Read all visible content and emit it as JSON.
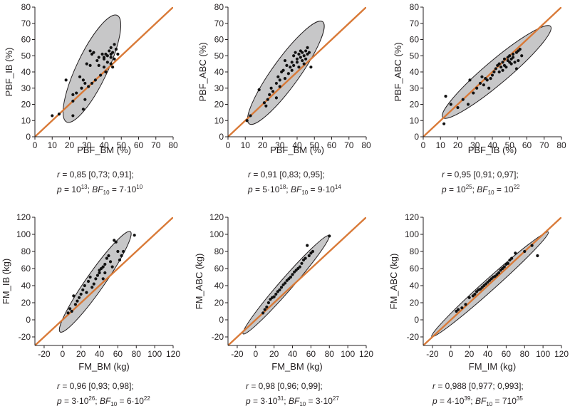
{
  "chart_data": [
    {
      "type": "scatter",
      "xlabel": "PBF_BM (%)",
      "ylabel": "PBF_IB (%)",
      "xlim": [
        0,
        80
      ],
      "ylim": [
        0,
        80
      ],
      "xticks": [
        0,
        10,
        20,
        30,
        40,
        50,
        60,
        70,
        80
      ],
      "yticks": [
        0,
        10,
        20,
        30,
        40,
        50,
        60,
        70,
        80
      ],
      "identity_line": true,
      "ellipse": {
        "center": [
          33,
          42
        ],
        "semi_major": 36,
        "semi_minor": 9,
        "angle_deg": 66
      },
      "points": [
        [
          10,
          13
        ],
        [
          14,
          14
        ],
        [
          18,
          35
        ],
        [
          22,
          13
        ],
        [
          22,
          26
        ],
        [
          22,
          22
        ],
        [
          24,
          27
        ],
        [
          26,
          37
        ],
        [
          27,
          30
        ],
        [
          28,
          35
        ],
        [
          28,
          17
        ],
        [
          29,
          23
        ],
        [
          29,
          33
        ],
        [
          30,
          45
        ],
        [
          31,
          31
        ],
        [
          32,
          44
        ],
        [
          32,
          53
        ],
        [
          33,
          51
        ],
        [
          33,
          33
        ],
        [
          34,
          52
        ],
        [
          35,
          35
        ],
        [
          36,
          47
        ],
        [
          37,
          44
        ],
        [
          37,
          49
        ],
        [
          38,
          38
        ],
        [
          39,
          51
        ],
        [
          40,
          43
        ],
        [
          40,
          48
        ],
        [
          40,
          49
        ],
        [
          41,
          51
        ],
        [
          41,
          40
        ],
        [
          42,
          46
        ],
        [
          42,
          50
        ],
        [
          43,
          53
        ],
        [
          44,
          51
        ],
        [
          44,
          45
        ],
        [
          44,
          55
        ],
        [
          44,
          49
        ],
        [
          45,
          52
        ],
        [
          45,
          43
        ],
        [
          46,
          57
        ],
        [
          46,
          48
        ],
        [
          47,
          54
        ],
        [
          48,
          51
        ]
      ],
      "caption": {
        "r_label": "r",
        "r_text": " = 0,85 [0,73; 0,91];",
        "p_label": "p",
        "p_text": " = 10",
        "p_exp": "13",
        "p_rest": "; ",
        "bf_label": "BF",
        "bf_sub": "10",
        "bf_text": " = 7·10",
        "bf_exp": "10"
      }
    },
    {
      "type": "scatter",
      "xlabel": "PBF_BM (%)",
      "ylabel": "PBF_ABC (%)",
      "xlim": [
        0,
        80
      ],
      "ylim": [
        0,
        80
      ],
      "xticks": [
        0,
        10,
        20,
        30,
        40,
        50,
        60,
        70,
        80
      ],
      "yticks": [
        0,
        10,
        20,
        30,
        40,
        50,
        60,
        70,
        80
      ],
      "identity_line": true,
      "ellipse": {
        "center": [
          33.5,
          39.5
        ],
        "semi_major": 38,
        "semi_minor": 8,
        "angle_deg": 56
      },
      "points": [
        [
          11,
          10
        ],
        [
          13,
          13
        ],
        [
          18,
          29
        ],
        [
          21,
          21
        ],
        [
          22,
          19
        ],
        [
          23,
          23
        ],
        [
          24,
          26
        ],
        [
          25,
          30
        ],
        [
          26,
          28
        ],
        [
          28,
          33
        ],
        [
          28,
          24
        ],
        [
          29,
          37
        ],
        [
          30,
          31
        ],
        [
          30,
          35
        ],
        [
          31,
          40
        ],
        [
          32,
          41
        ],
        [
          33,
          47
        ],
        [
          33,
          36
        ],
        [
          34,
          44
        ],
        [
          35,
          39
        ],
        [
          36,
          43
        ],
        [
          37,
          46
        ],
        [
          37,
          41
        ],
        [
          38,
          50
        ],
        [
          38,
          44
        ],
        [
          39,
          52
        ],
        [
          40,
          46
        ],
        [
          40,
          48
        ],
        [
          41,
          51
        ],
        [
          41,
          43
        ],
        [
          42,
          49
        ],
        [
          42,
          53
        ],
        [
          43,
          47
        ],
        [
          43,
          52
        ],
        [
          44,
          50
        ],
        [
          44,
          45
        ],
        [
          45,
          53
        ],
        [
          45,
          48
        ],
        [
          46,
          51
        ],
        [
          46,
          55
        ],
        [
          47,
          52
        ],
        [
          48,
          43
        ]
      ],
      "caption": {
        "r_label": "r",
        "r_text": " = 0,91 [0,83; 0,95];",
        "p_label": "p",
        "p_text": " = 5·10",
        "p_exp": "18",
        "p_rest": "; ",
        "bf_label": "BF",
        "bf_sub": "10",
        "bf_text": " = 9·10",
        "bf_exp": "14"
      }
    },
    {
      "type": "scatter",
      "xlabel": "PBF_IB (%)",
      "ylabel": "PBF_ABC (%)",
      "xlim": [
        0,
        80
      ],
      "ylim": [
        0,
        80
      ],
      "xticks": [
        0,
        10,
        20,
        30,
        40,
        50,
        60,
        70,
        80
      ],
      "yticks": [
        0,
        10,
        20,
        30,
        40,
        50,
        60,
        70,
        80
      ],
      "identity_line": true,
      "ellipse": {
        "center": [
          42.5,
          40
        ],
        "semi_major": 42,
        "semi_minor": 7,
        "angle_deg": 42
      },
      "points": [
        [
          12,
          8
        ],
        [
          13,
          25
        ],
        [
          16,
          20
        ],
        [
          20,
          18
        ],
        [
          23,
          23
        ],
        [
          26,
          20
        ],
        [
          27,
          35
        ],
        [
          29,
          27
        ],
        [
          31,
          30
        ],
        [
          33,
          33
        ],
        [
          34,
          37
        ],
        [
          35,
          32
        ],
        [
          36,
          36
        ],
        [
          37,
          35
        ],
        [
          38,
          30
        ],
        [
          39,
          36
        ],
        [
          40,
          38
        ],
        [
          41,
          40
        ],
        [
          42,
          42
        ],
        [
          43,
          44
        ],
        [
          44,
          40
        ],
        [
          44,
          45
        ],
        [
          45,
          43
        ],
        [
          46,
          46
        ],
        [
          46,
          41
        ],
        [
          47,
          48
        ],
        [
          47,
          44
        ],
        [
          48,
          43
        ],
        [
          49,
          47
        ],
        [
          49,
          49
        ],
        [
          50,
          46
        ],
        [
          50,
          50
        ],
        [
          51,
          45
        ],
        [
          51,
          48
        ],
        [
          52,
          51
        ],
        [
          52,
          49
        ],
        [
          53,
          46
        ],
        [
          54,
          52
        ],
        [
          54,
          42
        ],
        [
          55,
          47
        ],
        [
          55,
          53
        ],
        [
          56,
          54
        ],
        [
          57,
          50
        ]
      ],
      "caption": {
        "r_label": "r",
        "r_text": " = 0,95 [0,91; 0,97];",
        "p_label": "p",
        "p_text": " = 10",
        "p_exp": "25",
        "p_rest": "; ",
        "bf_label": "BF",
        "bf_sub": "10",
        "bf_text": " = 10",
        "bf_exp": "22"
      }
    },
    {
      "type": "scatter",
      "xlabel": "FM_BM (kg)",
      "ylabel": "FM_IB (kg)",
      "xlim": [
        -30,
        120
      ],
      "ylim": [
        -30,
        120
      ],
      "xticks": [
        -20,
        0,
        20,
        40,
        60,
        80,
        100,
        120
      ],
      "yticks": [
        -20,
        0,
        20,
        40,
        60,
        80,
        100,
        120
      ],
      "identity_line": true,
      "ellipse": {
        "center": [
          35.5,
          44.5
        ],
        "semi_major": 70,
        "semi_minor": 10,
        "angle_deg": 57
      },
      "points": [
        [
          6,
          8
        ],
        [
          8,
          13
        ],
        [
          10,
          10
        ],
        [
          12,
          28
        ],
        [
          14,
          18
        ],
        [
          16,
          22
        ],
        [
          18,
          26
        ],
        [
          20,
          30
        ],
        [
          22,
          35
        ],
        [
          24,
          40
        ],
        [
          26,
          32
        ],
        [
          28,
          45
        ],
        [
          30,
          50
        ],
        [
          32,
          38
        ],
        [
          34,
          42
        ],
        [
          36,
          48
        ],
        [
          38,
          52
        ],
        [
          40,
          55
        ],
        [
          40,
          58
        ],
        [
          42,
          60
        ],
        [
          44,
          48
        ],
        [
          44,
          62
        ],
        [
          46,
          65
        ],
        [
          46,
          55
        ],
        [
          48,
          72
        ],
        [
          50,
          75
        ],
        [
          52,
          68
        ],
        [
          54,
          62
        ],
        [
          56,
          93
        ],
        [
          58,
          91
        ],
        [
          60,
          80
        ],
        [
          62,
          70
        ],
        [
          64,
          75
        ],
        [
          66,
          80
        ],
        [
          78,
          99
        ]
      ],
      "caption": {
        "r_label": "r",
        "r_text": " = 0,96 [0,93; 0,98];",
        "p_label": "p",
        "p_text": " = 3·10",
        "p_exp": "26",
        "p_rest": "; ",
        "bf_label": "BF",
        "bf_sub": "10",
        "bf_text": " = 6·10",
        "bf_exp": "22"
      }
    },
    {
      "type": "scatter",
      "xlabel": "FM_BM (kg)",
      "ylabel": "FM_ABC (kg)",
      "xlim": [
        -30,
        120
      ],
      "ylim": [
        -30,
        120
      ],
      "xticks": [
        -20,
        0,
        20,
        40,
        60,
        80,
        100,
        120
      ],
      "yticks": [
        -20,
        0,
        20,
        40,
        60,
        80,
        100,
        120
      ],
      "identity_line": true,
      "ellipse": {
        "center": [
          33,
          41
        ],
        "semi_major": 74,
        "semi_minor": 7,
        "angle_deg": 51
      },
      "points": [
        [
          8,
          8
        ],
        [
          10,
          12
        ],
        [
          12,
          15
        ],
        [
          14,
          20
        ],
        [
          16,
          24
        ],
        [
          18,
          26
        ],
        [
          20,
          27
        ],
        [
          22,
          30
        ],
        [
          24,
          33
        ],
        [
          26,
          35
        ],
        [
          28,
          38
        ],
        [
          30,
          41
        ],
        [
          32,
          43
        ],
        [
          34,
          46
        ],
        [
          36,
          48
        ],
        [
          38,
          50
        ],
        [
          40,
          53
        ],
        [
          42,
          56
        ],
        [
          44,
          58
        ],
        [
          46,
          60
        ],
        [
          48,
          62
        ],
        [
          50,
          66
        ],
        [
          52,
          70
        ],
        [
          54,
          72
        ],
        [
          56,
          87
        ],
        [
          58,
          75
        ],
        [
          60,
          78
        ],
        [
          62,
          80
        ],
        [
          80,
          98
        ]
      ],
      "caption": {
        "r_label": "r",
        "r_text": " = 0,98 [0,96; 0,99];",
        "p_label": "p",
        "p_text": " = 3·10",
        "p_exp": "31",
        "p_rest": "; ",
        "bf_label": "BF",
        "bf_sub": "10",
        "bf_text": " = 3·10",
        "bf_exp": "27"
      }
    },
    {
      "type": "scatter",
      "xlabel": "FM_IM (kg)",
      "ylabel": "FM_ABC (kg)",
      "xlim": [
        -30,
        120
      ],
      "ylim": [
        -30,
        120
      ],
      "xticks": [
        -20,
        0,
        20,
        40,
        60,
        80,
        100,
        120
      ],
      "yticks": [
        -20,
        0,
        20,
        40,
        60,
        80,
        100,
        120
      ],
      "identity_line": true,
      "ellipse": {
        "center": [
          42.5,
          41.5
        ],
        "semi_major": 88,
        "semi_minor": 6.5,
        "angle_deg": 44
      },
      "points": [
        [
          6,
          10
        ],
        [
          8,
          12
        ],
        [
          12,
          14
        ],
        [
          16,
          18
        ],
        [
          20,
          26
        ],
        [
          24,
          28
        ],
        [
          26,
          30
        ],
        [
          28,
          33
        ],
        [
          30,
          35
        ],
        [
          32,
          36
        ],
        [
          34,
          38
        ],
        [
          36,
          40
        ],
        [
          38,
          42
        ],
        [
          40,
          44
        ],
        [
          42,
          46
        ],
        [
          44,
          48
        ],
        [
          46,
          50
        ],
        [
          48,
          51
        ],
        [
          50,
          53
        ],
        [
          52,
          55
        ],
        [
          54,
          58
        ],
        [
          56,
          60
        ],
        [
          58,
          62
        ],
        [
          60,
          65
        ],
        [
          62,
          66
        ],
        [
          64,
          70
        ],
        [
          66,
          72
        ],
        [
          70,
          78
        ],
        [
          80,
          80
        ],
        [
          88,
          87
        ],
        [
          94,
          75
        ]
      ],
      "caption": {
        "r_label": "r",
        "r_text": " = 0,988 [0,977; 0,993];",
        "p_label": "p",
        "p_text": " = 4·10",
        "p_exp": "39",
        "p_rest": "; ",
        "bf_label": "BF",
        "bf_sub": "10",
        "bf_text": " = 710",
        "bf_exp": "35"
      }
    }
  ],
  "colors": {
    "identity_line": "#d97a38",
    "ellipse_fill": "#c7c7c8",
    "ellipse_stroke": "#231f20",
    "point": "#111111",
    "axis": "#231f20"
  }
}
